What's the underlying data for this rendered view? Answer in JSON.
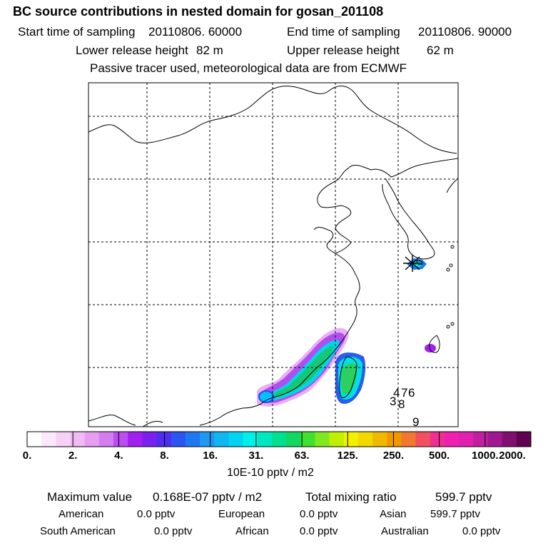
{
  "title": "BC  source contributions in nested domain for gosan_201108",
  "header": {
    "start_label": "Start time of sampling",
    "start_value": "20110806. 60000",
    "end_label": "End time of sampling",
    "end_value": "20110806. 90000",
    "lower_label": "Lower release height",
    "lower_value": "82 m",
    "upper_label": "Upper release height",
    "upper_value": "62 m",
    "note": "Passive tracer used, meteorological data are from ECMWF"
  },
  "chart_data": {
    "type": "heatmap",
    "title": "BC  source contributions in nested domain for gosan_201108",
    "units": "10E-10 pptv / m2",
    "grid": true,
    "colorbar": {
      "tick_labels": [
        "0.",
        "2.",
        "4.",
        "8.",
        "16.",
        "31.",
        "63.",
        "125.",
        "250.",
        "500.",
        "1000.",
        "2000."
      ],
      "colors": [
        "#ffffff",
        "#fbe9fb",
        "#f6d2f7",
        "#f0baf2",
        "#e69ef0",
        "#d27ef0",
        "#bb4ef0",
        "#a020f0",
        "#7a20f0",
        "#4f2ef0",
        "#2d55f0",
        "#1f78f0",
        "#1e98f0",
        "#10b6f0",
        "#00d4f0",
        "#00f0e8",
        "#00e8c0",
        "#00e090",
        "#10d860",
        "#40e030",
        "#80e820",
        "#c0f000",
        "#f0f000",
        "#f0d800",
        "#f0b800",
        "#f09800",
        "#f07830",
        "#f05060",
        "#f03090",
        "#f020b0",
        "#e020b0",
        "#c020a0",
        "#a01890",
        "#801070",
        "#600050"
      ]
    },
    "receptor_markers": [
      "4",
      "7",
      "6",
      "3",
      "8",
      "9"
    ]
  },
  "stats": {
    "max_label": "Maximum value",
    "max_value": "0.168E-07 pptv / m2",
    "total_label": "Total mixing ratio",
    "total_value": "599.7 pptv",
    "american_label": "American",
    "american_value": "0.0 pptv",
    "european_label": "European",
    "european_value": "0.0 pptv",
    "asian_label": "Asian",
    "asian_value": "599.7 pptv",
    "south_american_label": "South American",
    "south_american_value": "0.0 pptv",
    "african_label": "African",
    "african_value": "0.0 pptv",
    "australian_label": "Australian",
    "australian_value": "0.0 pptv"
  }
}
